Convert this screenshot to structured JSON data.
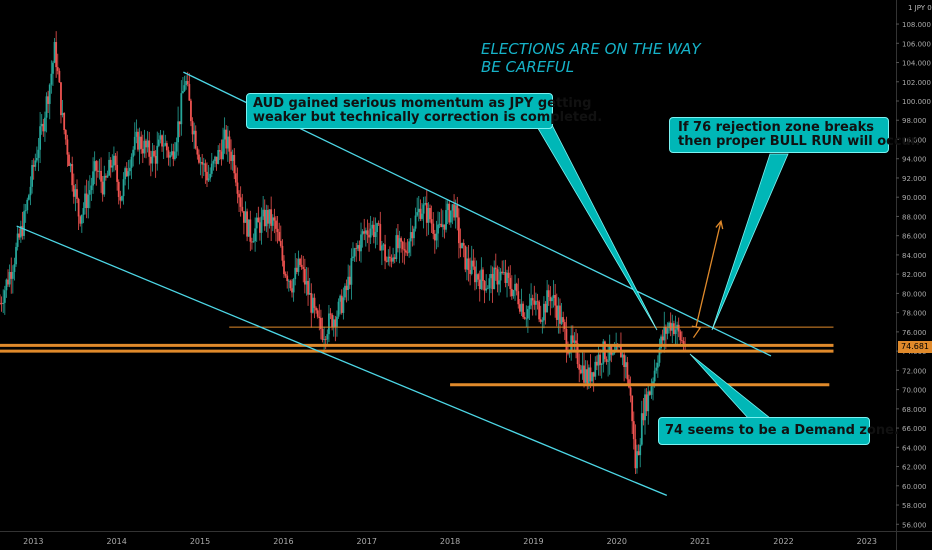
{
  "symbol_label": "1 JPY 0",
  "last_price": "74.681",
  "headline": {
    "line1": "ELECTIONS ARE ON THE WAY",
    "line2": "BE CAREFUL"
  },
  "callouts": {
    "momentum": {
      "line1": "AUD gained serious momentum as JPY getting",
      "line2": "weaker but technically correction is completed."
    },
    "breakout": {
      "line1": "If 76 rejection zone breaks",
      "line2": "then proper BULL RUN will occur."
    },
    "demand": {
      "line1": "74 seems to be a Demand zone."
    }
  },
  "colors": {
    "background": "#000000",
    "up": "#26a69a",
    "down": "#ef5350",
    "channel": "#4dd7e6",
    "level": "#e08a2b",
    "callout": "#00b7b7",
    "headline": "#16b3c9"
  },
  "chart_data": {
    "type": "candlestick",
    "x_ticks": [
      "2013",
      "2014",
      "2015",
      "2016",
      "2017",
      "2018",
      "2019",
      "2020",
      "2021",
      "2022",
      "2023"
    ],
    "y_ticks": [
      "56.000",
      "58.000",
      "60.000",
      "62.000",
      "64.000",
      "66.000",
      "68.000",
      "70.000",
      "72.000",
      "74.000",
      "76.000",
      "78.000",
      "80.000",
      "82.000",
      "84.000",
      "86.000",
      "88.000",
      "90.000",
      "92.000",
      "94.000",
      "96.000",
      "98.000",
      "100.000",
      "102.000",
      "104.000",
      "106.000",
      "108.000"
    ],
    "ylim": [
      55.3,
      110.5
    ],
    "xlim": [
      2012.6,
      2023.35
    ],
    "series_path": [
      [
        2012.6,
        79
      ],
      [
        2012.75,
        83
      ],
      [
        2012.9,
        88
      ],
      [
        2013.0,
        93
      ],
      [
        2013.1,
        97
      ],
      [
        2013.2,
        102
      ],
      [
        2013.26,
        105.5
      ],
      [
        2013.35,
        98
      ],
      [
        2013.45,
        93
      ],
      [
        2013.55,
        88
      ],
      [
        2013.65,
        90
      ],
      [
        2013.75,
        93
      ],
      [
        2013.85,
        91
      ],
      [
        2013.95,
        94
      ],
      [
        2014.05,
        90
      ],
      [
        2014.15,
        94
      ],
      [
        2014.25,
        96
      ],
      [
        2014.35,
        95
      ],
      [
        2014.45,
        94
      ],
      [
        2014.55,
        96
      ],
      [
        2014.65,
        94
      ],
      [
        2014.75,
        98
      ],
      [
        2014.82,
        102.5
      ],
      [
        2014.9,
        98
      ],
      [
        2015.0,
        94
      ],
      [
        2015.1,
        92
      ],
      [
        2015.2,
        94
      ],
      [
        2015.3,
        96
      ],
      [
        2015.4,
        94
      ],
      [
        2015.5,
        89
      ],
      [
        2015.6,
        86
      ],
      [
        2015.7,
        87
      ],
      [
        2015.8,
        88
      ],
      [
        2015.9,
        87
      ],
      [
        2016.0,
        83
      ],
      [
        2016.1,
        81
      ],
      [
        2016.2,
        83
      ],
      [
        2016.3,
        80
      ],
      [
        2016.4,
        77
      ],
      [
        2016.48,
        76
      ],
      [
        2016.55,
        77
      ],
      [
        2016.65,
        78
      ],
      [
        2016.75,
        80
      ],
      [
        2016.85,
        84
      ],
      [
        2016.95,
        86
      ],
      [
        2017.05,
        87
      ],
      [
        2017.15,
        86
      ],
      [
        2017.25,
        83
      ],
      [
        2017.35,
        85
      ],
      [
        2017.45,
        84
      ],
      [
        2017.55,
        87
      ],
      [
        2017.65,
        89
      ],
      [
        2017.75,
        88
      ],
      [
        2017.85,
        86
      ],
      [
        2017.95,
        88
      ],
      [
        2018.05,
        89
      ],
      [
        2018.12,
        85
      ],
      [
        2018.2,
        83
      ],
      [
        2018.3,
        82
      ],
      [
        2018.45,
        81
      ],
      [
        2018.6,
        82
      ],
      [
        2018.7,
        81
      ],
      [
        2018.8,
        80
      ],
      [
        2018.9,
        78
      ],
      [
        2019.0,
        79
      ],
      [
        2019.1,
        78
      ],
      [
        2019.2,
        80
      ],
      [
        2019.3,
        78
      ],
      [
        2019.4,
        75
      ],
      [
        2019.5,
        74
      ],
      [
        2019.6,
        72
      ],
      [
        2019.65,
        71
      ],
      [
        2019.75,
        73
      ],
      [
        2019.85,
        74
      ],
      [
        2019.95,
        73
      ],
      [
        2020.05,
        74
      ],
      [
        2020.12,
        72
      ],
      [
        2020.18,
        68
      ],
      [
        2020.22,
        62
      ],
      [
        2020.26,
        64
      ],
      [
        2020.32,
        68
      ],
      [
        2020.4,
        70
      ],
      [
        2020.5,
        74
      ],
      [
        2020.58,
        76
      ],
      [
        2020.65,
        77
      ],
      [
        2020.7,
        76.5
      ],
      [
        2020.78,
        75
      ],
      [
        2020.82,
        74.7
      ]
    ],
    "levels": [
      {
        "price": 76.5,
        "from": 2015.35,
        "to": 2022.6,
        "style": "thin"
      },
      {
        "price": 74.6,
        "from": 2012.6,
        "to": 2022.6,
        "style": "thick"
      },
      {
        "price": 74.0,
        "from": 2012.6,
        "to": 2022.6,
        "style": "thick"
      },
      {
        "price": 70.5,
        "from": 2018.0,
        "to": 2022.55,
        "style": "thick"
      }
    ],
    "channel_lines": [
      {
        "from": [
          2014.8,
          103.0
        ],
        "to": [
          2021.85,
          73.5
        ]
      },
      {
        "from": [
          2012.8,
          87.0
        ],
        "to": [
          2020.6,
          59.0
        ]
      }
    ],
    "projection": {
      "from": [
        2020.95,
        76.5
      ],
      "to": [
        2021.25,
        87.5
      ]
    }
  }
}
